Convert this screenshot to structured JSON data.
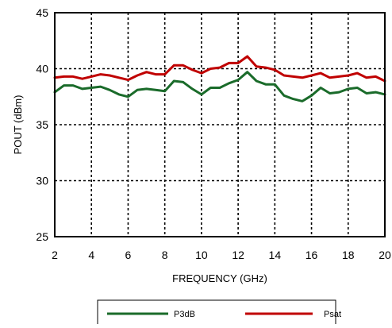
{
  "chart_data": {
    "type": "line",
    "xlabel": "FREQUENCY (GHz)",
    "ylabel": "POUT (dBm)",
    "xlim": [
      2,
      20
    ],
    "ylim": [
      25,
      45
    ],
    "xticks": [
      "2",
      "4",
      "6",
      "8",
      "10",
      "12",
      "14",
      "16",
      "18",
      "20"
    ],
    "yticks": [
      "25",
      "30",
      "35",
      "40",
      "45"
    ],
    "grid": "dotted",
    "legend_position": "bottom-center",
    "series": [
      {
        "name": "P3dB",
        "color": "#1a6b2a",
        "x": [
          2,
          2.5,
          3,
          3.5,
          4,
          4.5,
          5,
          5.5,
          6,
          6.5,
          7,
          7.5,
          8,
          8.5,
          9,
          9.5,
          10,
          10.5,
          11,
          11.5,
          12,
          12.5,
          13,
          13.5,
          14,
          14.5,
          15,
          15.5,
          16,
          16.5,
          17,
          17.5,
          18,
          18.5,
          19,
          19.5,
          20
        ],
        "y": [
          37.9,
          38.5,
          38.5,
          38.2,
          38.3,
          38.4,
          38.1,
          37.7,
          37.5,
          38.1,
          38.2,
          38.1,
          38.0,
          38.9,
          38.8,
          38.2,
          37.7,
          38.3,
          38.3,
          38.7,
          39.0,
          39.7,
          38.9,
          38.6,
          38.6,
          37.6,
          37.3,
          37.1,
          37.6,
          38.3,
          37.8,
          37.9,
          38.2,
          38.3,
          37.8,
          37.9,
          37.7
        ]
      },
      {
        "name": "Psat",
        "color": "#c00000",
        "x": [
          2,
          2.5,
          3,
          3.5,
          4,
          4.5,
          5,
          5.5,
          6,
          6.5,
          7,
          7.5,
          8,
          8.5,
          9,
          9.5,
          10,
          10.5,
          11,
          11.5,
          12,
          12.5,
          13,
          13.5,
          14,
          14.5,
          15,
          15.5,
          16,
          16.5,
          17,
          17.5,
          18,
          18.5,
          19,
          19.5,
          20
        ],
        "y": [
          39.2,
          39.3,
          39.3,
          39.1,
          39.3,
          39.5,
          39.4,
          39.2,
          39.0,
          39.4,
          39.7,
          39.5,
          39.5,
          40.3,
          40.3,
          39.9,
          39.6,
          40.0,
          40.1,
          40.5,
          40.5,
          41.1,
          40.2,
          40.1,
          39.9,
          39.4,
          39.3,
          39.2,
          39.4,
          39.6,
          39.2,
          39.3,
          39.4,
          39.6,
          39.2,
          39.3,
          38.9
        ]
      }
    ]
  }
}
